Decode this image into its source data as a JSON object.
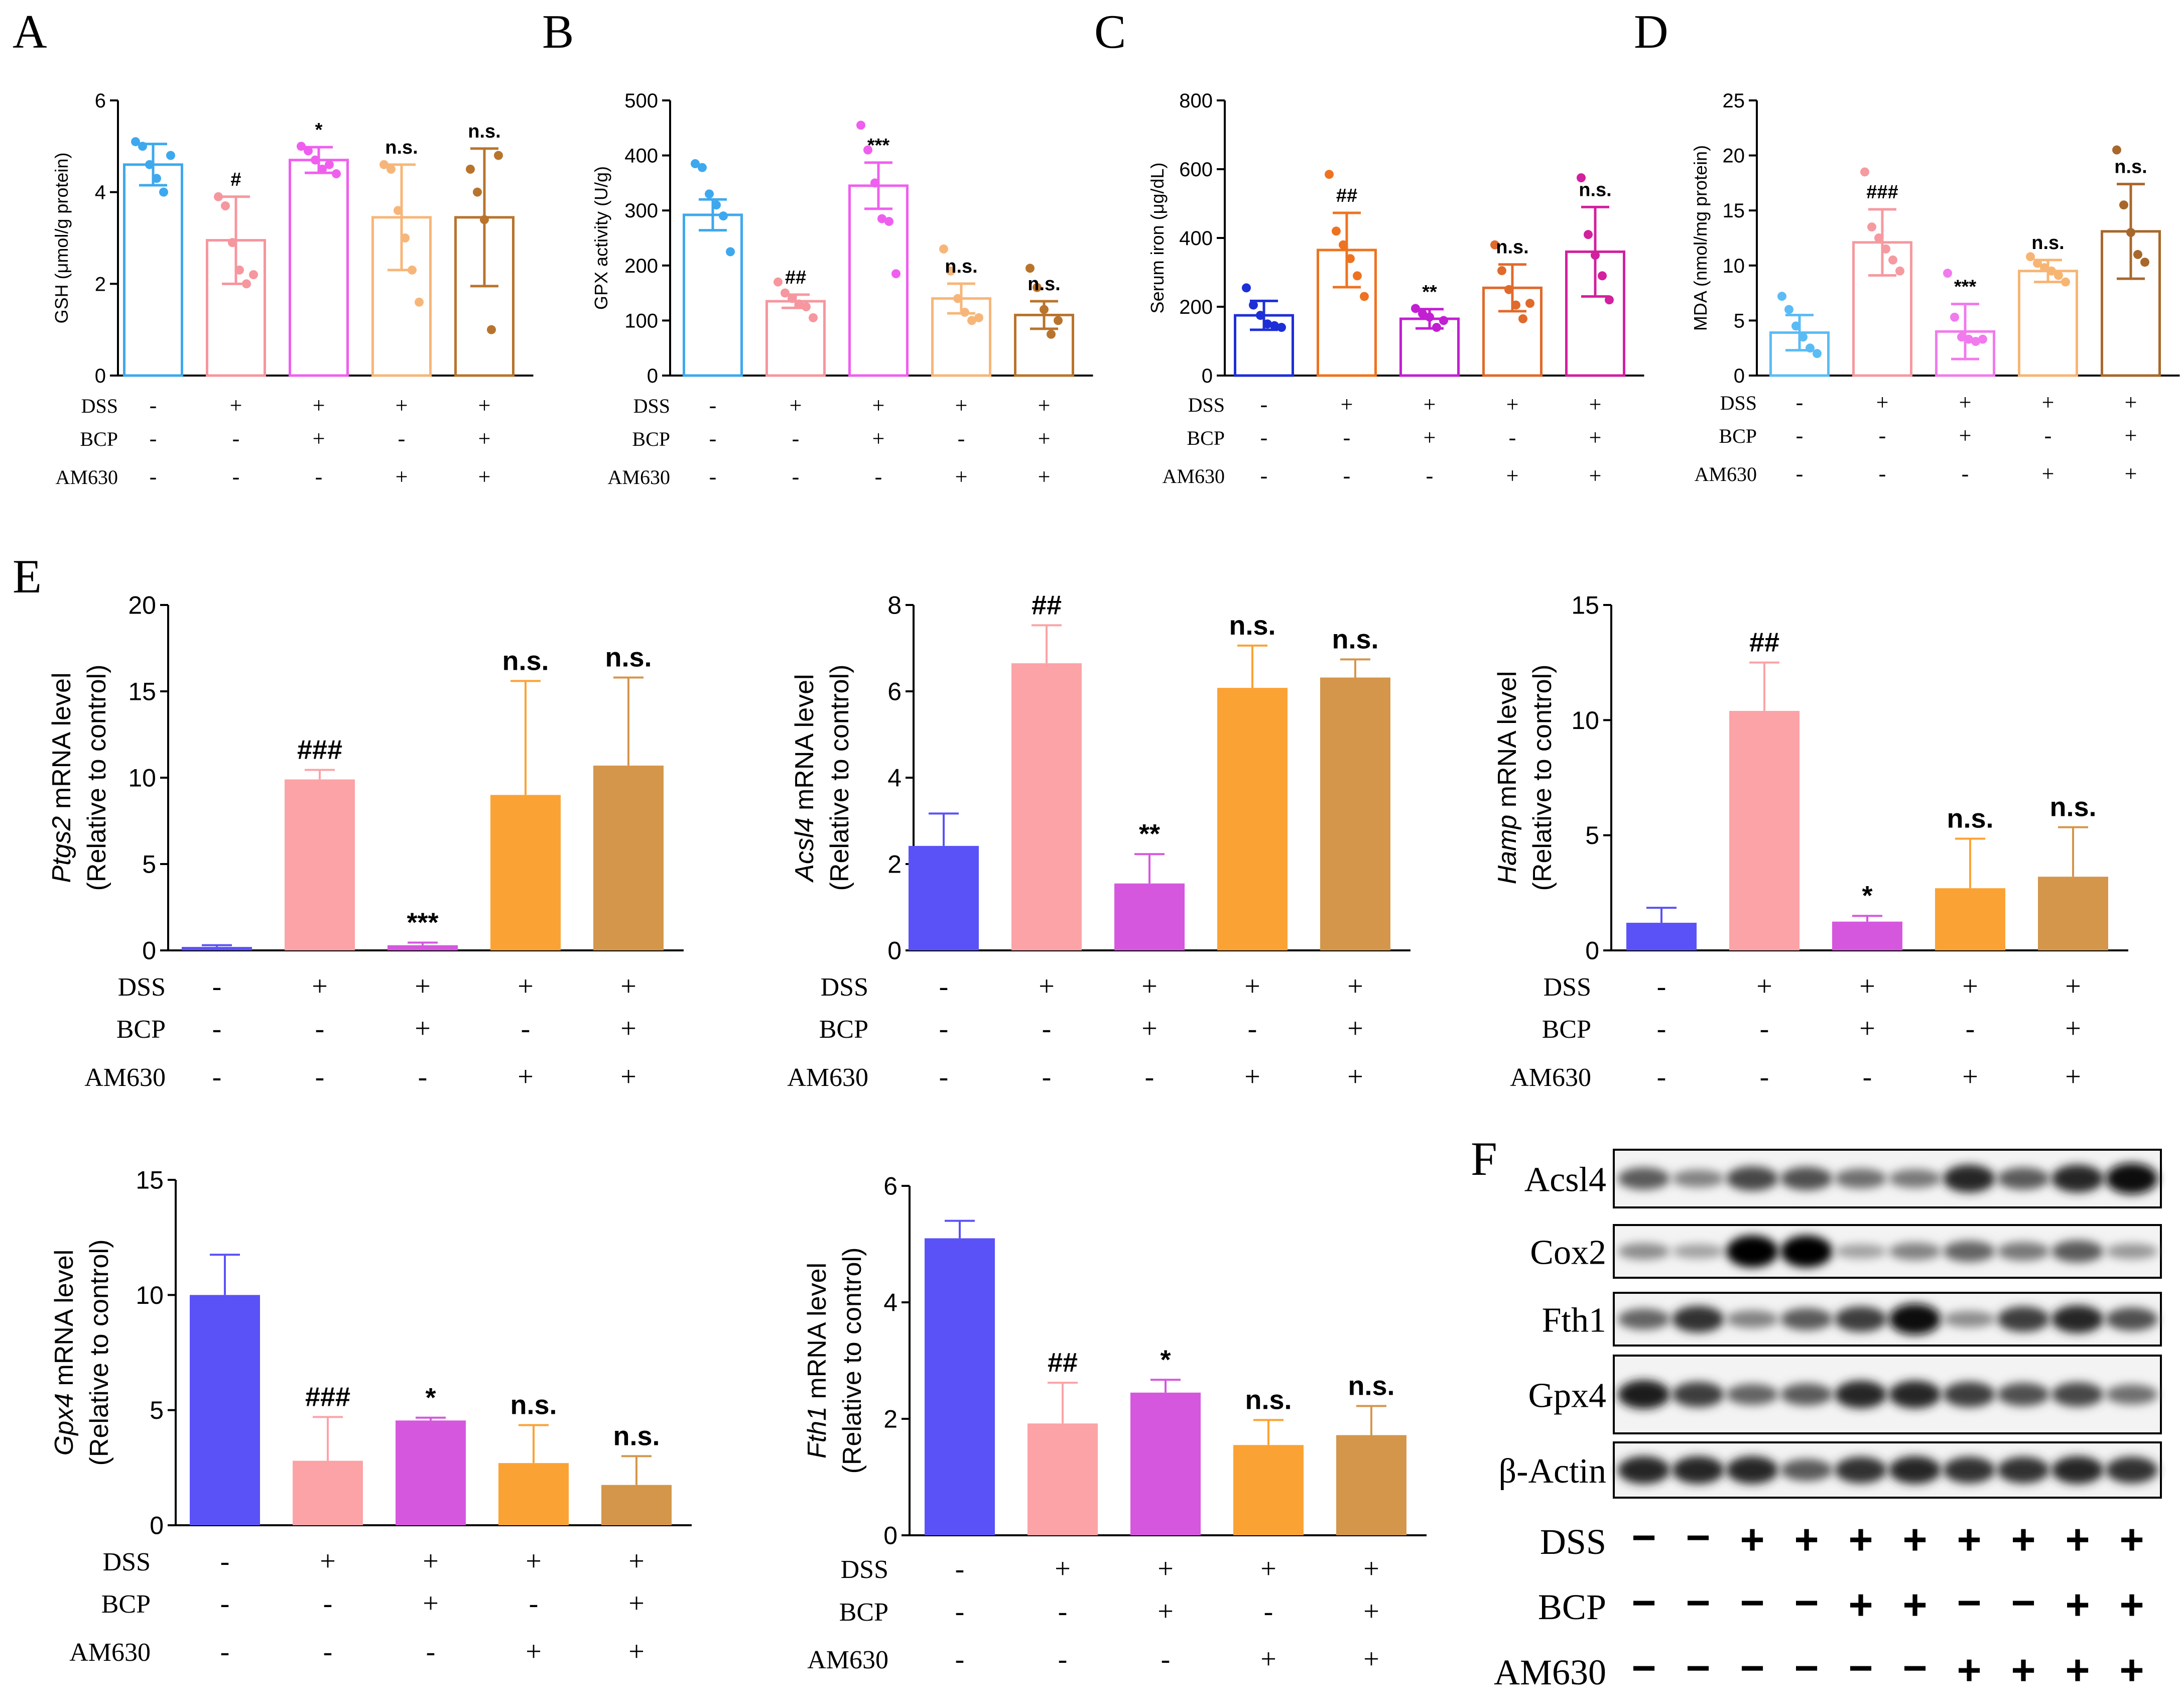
{
  "panel_labels": {
    "A": "A",
    "B": "B",
    "C": "C",
    "D": "D",
    "E": "E",
    "F": "F"
  },
  "colors": {
    "ctrl_dot": "#3ea8ee",
    "dss_dot": "#f6969e",
    "bcp_dot": "#ef5fef",
    "am_dot": "#f7b679",
    "both_dot": "#b8742d",
    "ctrl_bar": "#5a52f6",
    "dss_bar": "#fba3a6",
    "bcp_bar": "#d557de",
    "am_bar": "#fba234",
    "both_bar": "#d4964b",
    "c_ctrl": "#1d2fd6",
    "c_dss": "#ee7320",
    "c_bcp": "#c21ed2",
    "c_am": "#e06a2b",
    "c_both": "#d2209f",
    "d_ctrl": "#5bbcf5",
    "d_dss": "#f59aa0",
    "d_bcp": "#f17aee",
    "d_am": "#f7b574",
    "d_both": "#a8682c"
  },
  "treatment_row_labels": [
    "DSS",
    "BCP",
    "AM630"
  ],
  "treatment_signs": [
    [
      "-",
      "+",
      "+",
      "+",
      "+"
    ],
    [
      "-",
      "-",
      "+",
      "-",
      "+"
    ],
    [
      "-",
      "-",
      "-",
      "+",
      "+"
    ]
  ],
  "chart_data": [
    {
      "id": "A",
      "type": "bar",
      "title": "",
      "ylabel": "GSH (μmol/g protein)",
      "ylim": [
        0,
        6
      ],
      "ticks": [
        0,
        2,
        4,
        6
      ],
      "values": [
        4.6,
        2.95,
        4.7,
        3.45,
        3.45
      ],
      "errors": [
        0.45,
        0.95,
        0.28,
        1.15,
        1.5
      ],
      "points": [
        [
          5.1,
          5.0,
          4.6,
          4.3,
          4.0,
          4.8
        ],
        [
          3.9,
          3.7,
          2.9,
          2.3,
          2.0,
          2.2
        ],
        [
          5.0,
          4.9,
          4.7,
          4.5,
          4.6,
          4.4
        ],
        [
          4.6,
          4.5,
          3.6,
          3.0,
          2.3,
          1.6
        ],
        [
          4.5,
          4.0,
          3.4,
          1.0,
          4.8
        ]
      ],
      "annotations": [
        "",
        "#",
        "*",
        "n.s.",
        "n.s."
      ],
      "style": "open"
    },
    {
      "id": "B",
      "type": "bar",
      "title": "",
      "ylabel": "GPX activity (U/g)",
      "ylim": [
        0,
        500
      ],
      "ticks": [
        0,
        100,
        200,
        300,
        400,
        500
      ],
      "values": [
        292,
        135,
        345,
        140,
        110
      ],
      "errors": [
        28,
        12,
        42,
        27,
        25
      ],
      "points": [
        [
          385,
          378,
          330,
          310,
          290,
          225
        ],
        [
          170,
          150,
          140,
          130,
          125,
          105
        ],
        [
          455,
          410,
          350,
          285,
          280,
          185
        ],
        [
          230,
          190,
          140,
          115,
          100,
          105
        ],
        [
          195,
          160,
          120,
          75,
          100
        ]
      ],
      "annotations": [
        "",
        "##",
        "***",
        "n.s.",
        "n.s."
      ],
      "style": "open"
    },
    {
      "id": "C",
      "type": "bar",
      "title": "",
      "ylabel": "Serum iron (μg/dL)",
      "ylim": [
        0,
        800
      ],
      "ticks": [
        0,
        200,
        400,
        600,
        800
      ],
      "values": [
        175,
        365,
        165,
        255,
        360
      ],
      "errors": [
        42,
        108,
        28,
        68,
        130
      ],
      "points": [
        [
          255,
          205,
          175,
          150,
          145,
          140
        ],
        [
          585,
          420,
          380,
          340,
          290,
          230
        ],
        [
          195,
          180,
          170,
          140,
          160
        ],
        [
          380,
          305,
          250,
          205,
          165,
          210
        ],
        [
          575,
          410,
          350,
          290,
          220
        ]
      ],
      "annotations": [
        "",
        "##",
        "**",
        "n.s.",
        "n.s."
      ],
      "style": "open"
    },
    {
      "id": "D",
      "type": "bar",
      "title": "",
      "ylabel": "MDA (nmol/mg protein)",
      "ylim": [
        0,
        25
      ],
      "ticks": [
        0,
        5,
        10,
        15,
        20,
        25
      ],
      "values": [
        3.9,
        12.1,
        4.0,
        9.5,
        13.1
      ],
      "errors": [
        1.6,
        3.0,
        2.5,
        1.0,
        4.3
      ],
      "points": [
        [
          7.2,
          6.0,
          4.5,
          3.5,
          2.5,
          2.0
        ],
        [
          18.5,
          13.5,
          12.5,
          11.5,
          10.5,
          9.5
        ],
        [
          9.3,
          5.3,
          3.5,
          3.3,
          3.1,
          3.3
        ],
        [
          10.8,
          10.2,
          9.8,
          9.5,
          9.1,
          8.5
        ],
        [
          20.5,
          15.5,
          13.0,
          11.0,
          10.3
        ]
      ],
      "annotations": [
        "",
        "###",
        "***",
        "n.s.",
        "n.s."
      ],
      "style": "open"
    },
    {
      "id": "E1",
      "type": "bar",
      "title": "",
      "ylabel_italic": "Ptgs2",
      "ylabel_rest": " mRNA level",
      "ylabel2": "(Relative to control)",
      "ylim": [
        0,
        20
      ],
      "ticks": [
        0,
        5,
        10,
        15,
        20
      ],
      "values": [
        0.2,
        9.9,
        0.3,
        9.0,
        10.7
      ],
      "errors": [
        0.1,
        0.55,
        0.15,
        6.6,
        5.1
      ],
      "annotations": [
        "",
        "###",
        "***",
        "n.s.",
        "n.s."
      ],
      "style": "filled"
    },
    {
      "id": "E2",
      "type": "bar",
      "title": "",
      "ylabel_italic": "Acsl4",
      "ylabel_rest": " mRNA level",
      "ylabel2": "(Relative to control)",
      "ylim": [
        0,
        8
      ],
      "ticks": [
        0,
        2,
        4,
        6,
        8
      ],
      "values": [
        2.42,
        6.65,
        1.55,
        6.08,
        6.32
      ],
      "errors": [
        0.75,
        0.88,
        0.68,
        0.98,
        0.42
      ],
      "annotations": [
        "",
        "##",
        "**",
        "n.s.",
        "n.s."
      ],
      "style": "filled"
    },
    {
      "id": "E3",
      "type": "bar",
      "title": "",
      "ylabel_italic": "Hamp",
      "ylabel_rest": " mRNA level",
      "ylabel2": "(Relative to control)",
      "ylim": [
        0,
        15
      ],
      "ticks": [
        0,
        5,
        10,
        15
      ],
      "values": [
        1.2,
        10.4,
        1.25,
        2.7,
        3.2
      ],
      "errors": [
        0.65,
        2.1,
        0.25,
        2.15,
        2.15
      ],
      "annotations": [
        "",
        "##",
        "*",
        "n.s.",
        "n.s."
      ],
      "style": "filled"
    },
    {
      "id": "E4",
      "type": "bar",
      "title": "",
      "ylabel_italic": "Gpx4",
      "ylabel_rest": " mRNA level",
      "ylabel2": "(Relative to control)",
      "ylim": [
        0,
        15
      ],
      "ticks": [
        0,
        5,
        10,
        15
      ],
      "values": [
        10.0,
        2.8,
        4.55,
        2.7,
        1.75
      ],
      "errors": [
        1.75,
        1.9,
        0.12,
        1.65,
        1.25
      ],
      "annotations": [
        "",
        "###",
        "*",
        "n.s.",
        "n.s."
      ],
      "style": "filled"
    },
    {
      "id": "E5",
      "type": "bar",
      "title": "",
      "ylabel_italic": "Fth1",
      "ylabel_rest": " mRNA level",
      "ylabel2": "(Relative to control)",
      "ylim": [
        0,
        6
      ],
      "ticks": [
        0,
        2,
        4,
        6
      ],
      "values": [
        5.1,
        1.92,
        2.45,
        1.55,
        1.72
      ],
      "errors": [
        0.3,
        0.7,
        0.22,
        0.43,
        0.5
      ],
      "annotations": [
        "",
        "##",
        "*",
        "n.s.",
        "n.s."
      ],
      "style": "filled"
    }
  ],
  "blot": {
    "rows": [
      {
        "label": "Acsl4",
        "intensities": [
          0.55,
          0.35,
          0.65,
          0.6,
          0.45,
          0.4,
          0.8,
          0.55,
          0.8,
          0.95
        ]
      },
      {
        "label": "Cox2",
        "intensities": [
          0.3,
          0.2,
          1.0,
          1.0,
          0.2,
          0.35,
          0.5,
          0.4,
          0.55,
          0.25
        ]
      },
      {
        "label": "Fth1",
        "intensities": [
          0.5,
          0.75,
          0.35,
          0.55,
          0.7,
          0.95,
          0.3,
          0.7,
          0.8,
          0.6
        ]
      },
      {
        "label": "Gpx4",
        "intensities": [
          0.85,
          0.7,
          0.5,
          0.55,
          0.8,
          0.8,
          0.7,
          0.6,
          0.65,
          0.45
        ]
      },
      {
        "label": "β-Actin",
        "intensities": [
          0.8,
          0.8,
          0.8,
          0.55,
          0.75,
          0.8,
          0.75,
          0.75,
          0.8,
          0.75
        ]
      }
    ],
    "signs": [
      [
        "−",
        "−",
        "+",
        "+",
        "+",
        "+",
        "+",
        "+",
        "+",
        "+"
      ],
      [
        "−",
        "−",
        "−",
        "−",
        "+",
        "+",
        "−",
        "−",
        "+",
        "+"
      ],
      [
        "−",
        "−",
        "−",
        "−",
        "−",
        "−",
        "+",
        "+",
        "+",
        "+"
      ]
    ]
  }
}
